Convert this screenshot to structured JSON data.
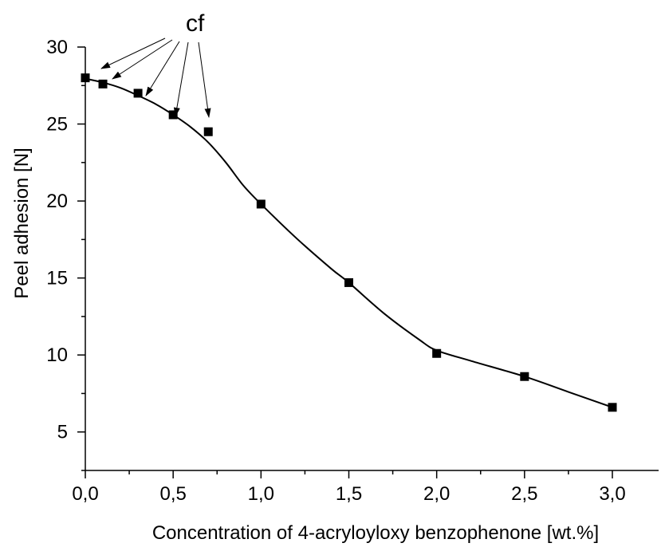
{
  "chart_data": {
    "type": "line",
    "xlabel": "Concentration of 4-acryloyloxy benzophenone [wt.%]",
    "ylabel": "Peel adhesion [N]",
    "xlim": [
      0,
      3.0
    ],
    "ylim": [
      2.5,
      30
    ],
    "x_ticks": [
      {
        "value": 0,
        "label": "0,0"
      },
      {
        "value": 0.5,
        "label": "0,5"
      },
      {
        "value": 1.0,
        "label": "1,0"
      },
      {
        "value": 1.5,
        "label": "1,5"
      },
      {
        "value": 2.0,
        "label": "2,0"
      },
      {
        "value": 2.5,
        "label": "2,5"
      },
      {
        "value": 3.0,
        "label": "3,0"
      }
    ],
    "y_ticks": [
      {
        "value": 5,
        "label": "5"
      },
      {
        "value": 10,
        "label": "10"
      },
      {
        "value": 15,
        "label": "15"
      },
      {
        "value": 20,
        "label": "20"
      },
      {
        "value": 25,
        "label": "25"
      },
      {
        "value": 30,
        "label": "30"
      }
    ],
    "grid": false,
    "series": [
      {
        "marker": "square",
        "color": "#000000",
        "points": [
          {
            "x": 0.0,
            "y": 28.0
          },
          {
            "x": 0.1,
            "y": 27.6
          },
          {
            "x": 0.3,
            "y": 27.0
          },
          {
            "x": 0.5,
            "y": 25.6
          },
          {
            "x": 0.7,
            "y": 24.5
          },
          {
            "x": 1.0,
            "y": 19.8
          },
          {
            "x": 1.5,
            "y": 14.7
          },
          {
            "x": 2.0,
            "y": 10.1
          },
          {
            "x": 2.5,
            "y": 8.6
          },
          {
            "x": 3.0,
            "y": 6.6
          }
        ],
        "fit_curve": [
          {
            "x": 0.0,
            "y": 27.95
          },
          {
            "x": 0.1,
            "y": 27.7
          },
          {
            "x": 0.2,
            "y": 27.35
          },
          {
            "x": 0.3,
            "y": 26.85
          },
          {
            "x": 0.4,
            "y": 26.3
          },
          {
            "x": 0.5,
            "y": 25.6
          },
          {
            "x": 0.6,
            "y": 24.8
          },
          {
            "x": 0.7,
            "y": 23.8
          },
          {
            "x": 0.8,
            "y": 22.5
          },
          {
            "x": 0.9,
            "y": 21.0
          },
          {
            "x": 1.0,
            "y": 19.8
          },
          {
            "x": 1.2,
            "y": 17.6
          },
          {
            "x": 1.4,
            "y": 15.6
          },
          {
            "x": 1.5,
            "y": 14.7
          },
          {
            "x": 1.7,
            "y": 12.7
          },
          {
            "x": 1.9,
            "y": 11.0
          },
          {
            "x": 2.0,
            "y": 10.3
          },
          {
            "x": 2.2,
            "y": 9.6
          },
          {
            "x": 2.5,
            "y": 8.6
          },
          {
            "x": 2.75,
            "y": 7.6
          },
          {
            "x": 3.0,
            "y": 6.6
          }
        ]
      }
    ],
    "annotations": [
      {
        "text": "cf",
        "points_to_x": [
          0.1,
          0.3,
          0.5,
          0.7,
          0.0
        ]
      }
    ]
  }
}
